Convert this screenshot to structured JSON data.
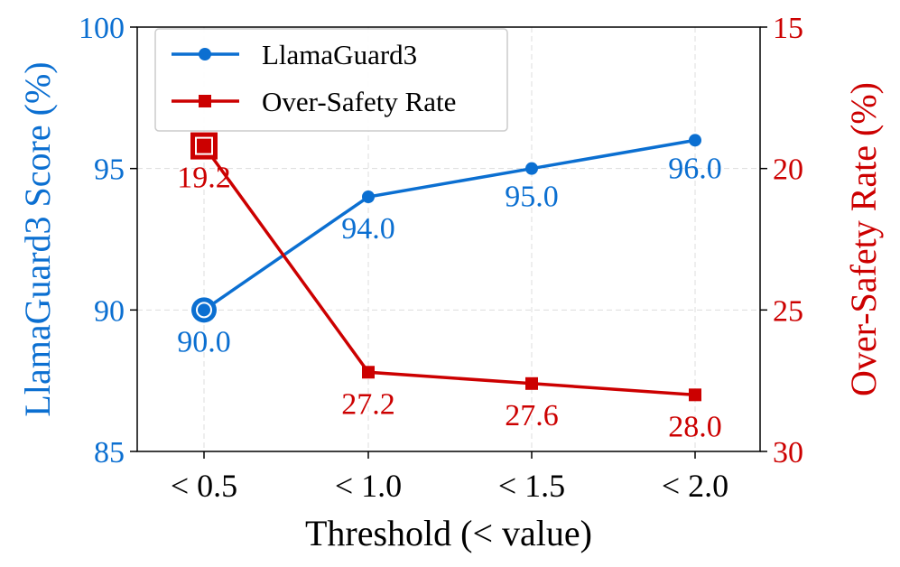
{
  "chart_data": {
    "type": "line",
    "title": "",
    "xlabel": "Threshold (< value)",
    "ylabel_left": "LlamaGuard3 Score (%)",
    "ylabel_right": "Over-Safety Rate (%)",
    "categories": [
      "< 0.5",
      "< 1.0",
      "< 1.5",
      "< 2.0"
    ],
    "ylim_left": [
      85,
      100
    ],
    "yticks_left": [
      "85",
      "90",
      "95",
      "100"
    ],
    "ylim_right": [
      30,
      15
    ],
    "yticks_right": [
      "15",
      "20",
      "25",
      "30"
    ],
    "grid": true,
    "legend_placement": "top-left",
    "highlight_index": 0,
    "series": [
      {
        "name": "LlamaGuard3",
        "axis": "left",
        "marker": "circle",
        "color": "#0b6fd1",
        "values": [
          90.0,
          94.0,
          95.0,
          96.0
        ],
        "labels": [
          "90.0",
          "94.0",
          "95.0",
          "96.0"
        ]
      },
      {
        "name": "Over-Safety Rate",
        "axis": "right",
        "marker": "square",
        "color": "#cc0000",
        "values": [
          19.2,
          27.2,
          27.6,
          28.0
        ],
        "labels": [
          "19.2",
          "27.2",
          "27.6",
          "28.0"
        ]
      }
    ]
  }
}
